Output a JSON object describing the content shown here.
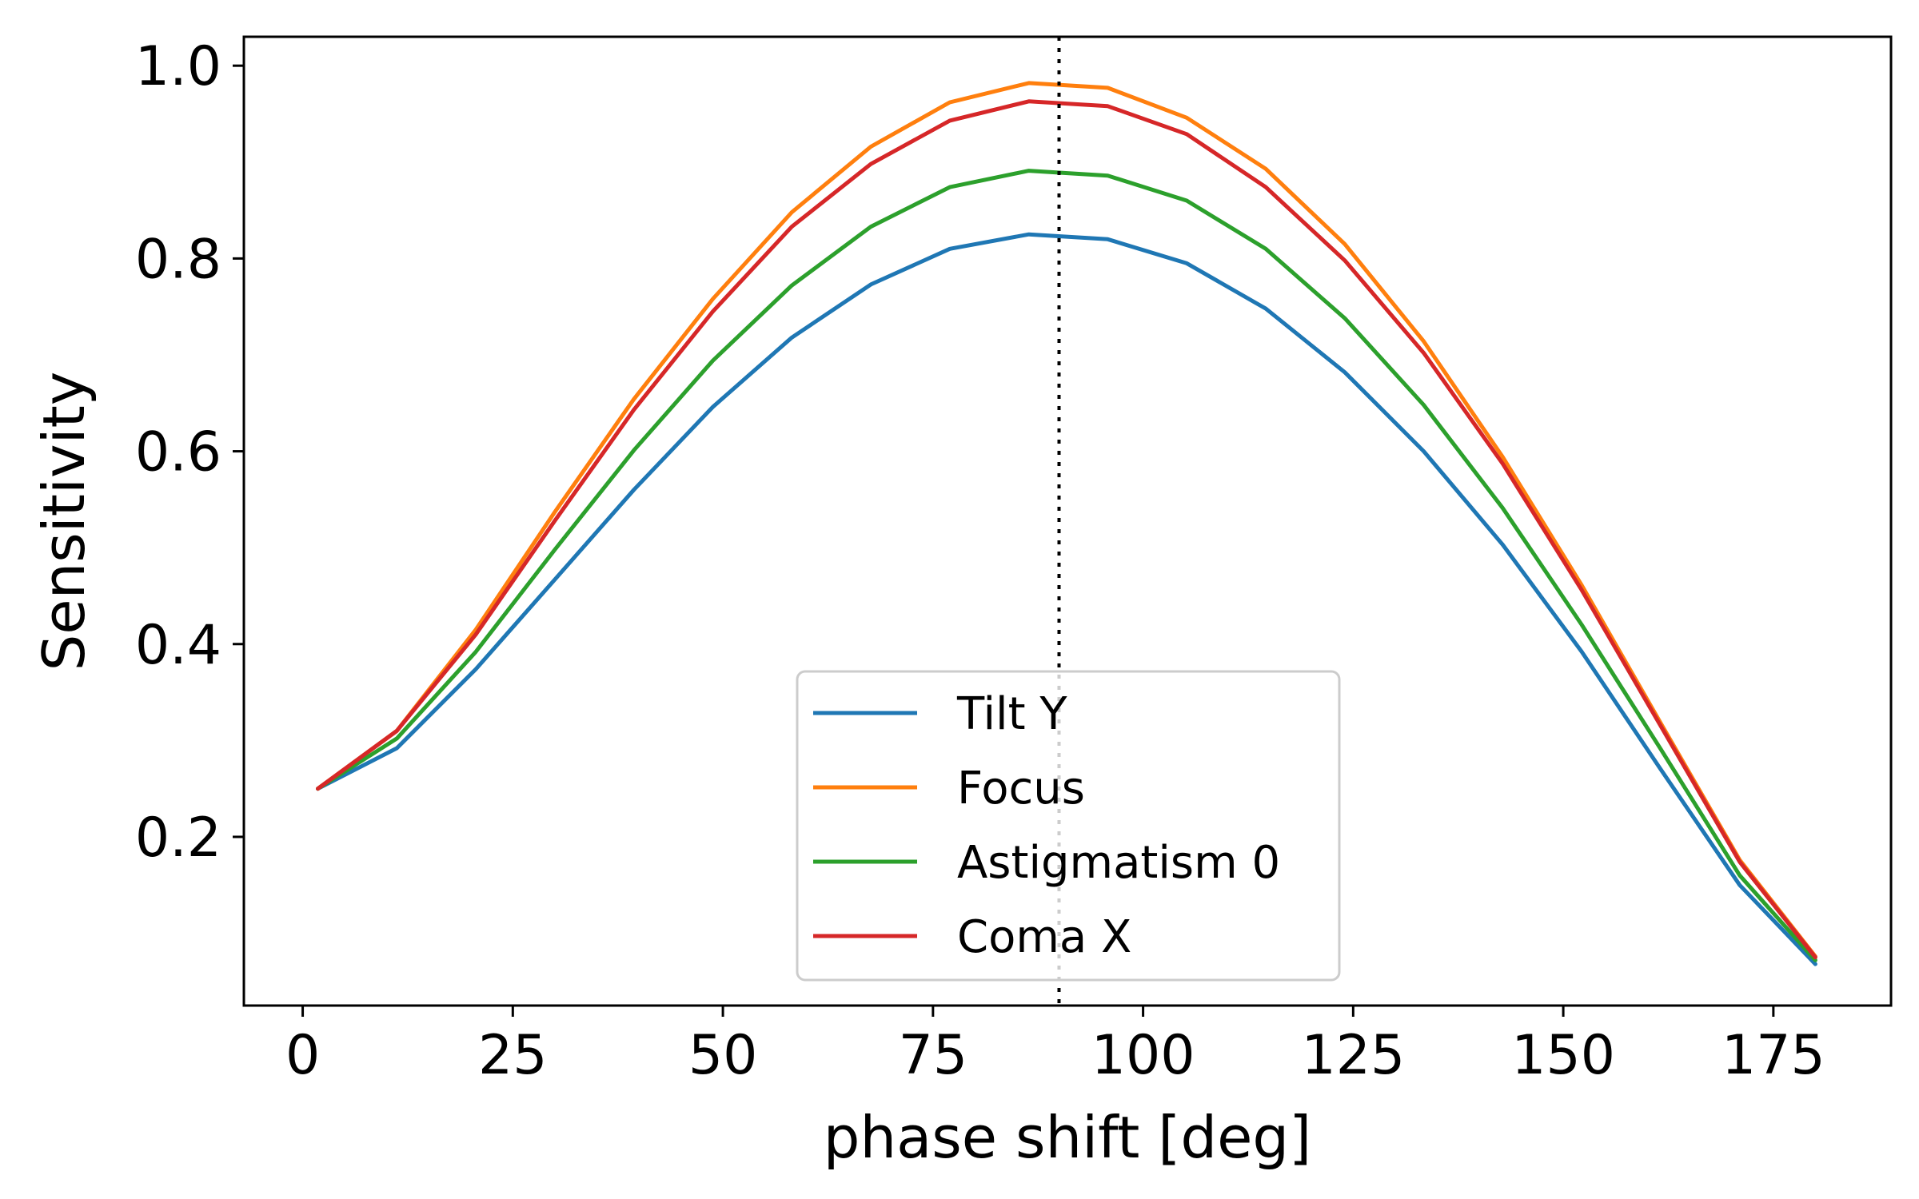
{
  "chart_data": {
    "type": "line",
    "xlabel": "phase shift [deg]",
    "ylabel": "Sensitivity",
    "xlim": [
      -7,
      189
    ],
    "ylim": [
      0.025,
      1.03
    ],
    "xticks": [
      0,
      25,
      50,
      75,
      100,
      125,
      150,
      175
    ],
    "xtick_labels": [
      "0",
      "25",
      "50",
      "75",
      "100",
      "125",
      "150",
      "175"
    ],
    "yticks": [
      0.2,
      0.4,
      0.6,
      0.8,
      1.0
    ],
    "ytick_labels": [
      "0.2",
      "0.4",
      "0.6",
      "0.8",
      "1.0"
    ],
    "grid": false,
    "legend_position": "lower-center",
    "vline": {
      "x": 90,
      "style": "dotted",
      "color": "#000000"
    },
    "x": [
      1.8,
      11.2,
      20.6,
      30.0,
      39.4,
      48.8,
      58.2,
      67.6,
      77.0,
      86.4,
      95.8,
      105.2,
      114.6,
      124.0,
      133.4,
      142.8,
      152.2,
      161.6,
      171.0,
      180.0
    ],
    "series": [
      {
        "name": "Tilt Y",
        "color": "#1f77b4",
        "values": [
          0.25,
          0.292,
          0.374,
          0.467,
          0.56,
          0.646,
          0.718,
          0.773,
          0.81,
          0.825,
          0.82,
          0.795,
          0.748,
          0.682,
          0.6,
          0.503,
          0.392,
          0.27,
          0.15,
          0.068
        ]
      },
      {
        "name": "Focus",
        "color": "#ff7f0e",
        "values": [
          0.25,
          0.31,
          0.415,
          0.537,
          0.654,
          0.758,
          0.848,
          0.916,
          0.962,
          0.982,
          0.977,
          0.946,
          0.893,
          0.815,
          0.714,
          0.594,
          0.461,
          0.318,
          0.176,
          0.076
        ]
      },
      {
        "name": "Astigmatism 0",
        "color": "#2ca02c",
        "values": [
          0.25,
          0.302,
          0.392,
          0.498,
          0.601,
          0.694,
          0.772,
          0.833,
          0.874,
          0.891,
          0.886,
          0.86,
          0.81,
          0.738,
          0.648,
          0.541,
          0.42,
          0.291,
          0.16,
          0.072
        ]
      },
      {
        "name": "Coma X",
        "color": "#d62728",
        "values": [
          0.25,
          0.31,
          0.41,
          0.528,
          0.643,
          0.745,
          0.833,
          0.898,
          0.943,
          0.963,
          0.958,
          0.929,
          0.874,
          0.798,
          0.702,
          0.587,
          0.456,
          0.315,
          0.174,
          0.075
        ]
      }
    ]
  }
}
